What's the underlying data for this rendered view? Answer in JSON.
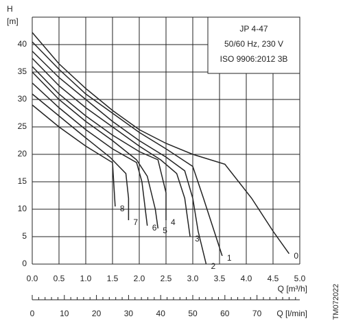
{
  "chart_data": {
    "type": "line",
    "y_label": "H",
    "y_unit": "[m]",
    "x_label": "Q [m³/h]",
    "x2_label": "Q [l/min]",
    "info": [
      "JP 4-47",
      "50/60 Hz, 230 V",
      "ISO 9906:2012 3B"
    ],
    "code": "TM072022",
    "xlim": [
      0,
      5
    ],
    "ylim": [
      0,
      45
    ],
    "xticks": [
      {
        "value": 0,
        "label": "0.0"
      },
      0.5,
      {
        "value": 1,
        "label": "1.0"
      },
      1.5,
      {
        "value": 2,
        "label": "2.0"
      },
      2.5,
      {
        "value": 3,
        "label": "3.0"
      },
      3.5,
      {
        "value": 4,
        "label": "4.0"
      },
      4.5,
      {
        "value": 5,
        "label": "5.0"
      }
    ],
    "yticks": [
      0,
      5,
      10,
      15,
      20,
      25,
      30,
      35,
      40
    ],
    "y_gridtop": 45,
    "x2lim": [
      0,
      83.33
    ],
    "x2ticks": [
      0,
      10,
      20,
      30,
      40,
      50,
      60,
      70
    ],
    "x2minorticks": [
      2,
      4,
      6,
      8,
      12,
      14,
      16,
      18,
      22,
      24,
      26,
      28,
      32,
      34,
      36,
      38,
      42,
      44,
      46,
      48,
      52,
      54,
      56,
      58,
      62,
      64,
      66,
      68,
      72,
      74,
      76,
      78,
      80,
      82
    ],
    "grid": true,
    "color": "#222222",
    "series": [
      {
        "name": "0",
        "x": [
          0,
          0.5,
          1,
          1.5,
          2,
          2.5,
          3,
          3.6,
          4.1,
          4.5,
          4.8
        ],
        "values": [
          42.2,
          36.5,
          32,
          28,
          24.5,
          22,
          20,
          18.2,
          12,
          6,
          1.9
        ]
      },
      {
        "name": "1",
        "x": [
          0,
          0.5,
          1,
          1.5,
          2,
          2.5,
          3,
          3.2,
          3.4,
          3.55
        ],
        "values": [
          40.5,
          35.5,
          31,
          27.5,
          24,
          21,
          17.8,
          12,
          6,
          1.5
        ]
      },
      {
        "name": "2",
        "x": [
          0,
          0.5,
          1,
          1.5,
          2,
          2.5,
          2.85,
          3,
          3.1,
          3.25
        ],
        "values": [
          38.8,
          34,
          30,
          26,
          22.5,
          19.5,
          17,
          12,
          6,
          0
        ]
      },
      {
        "name": "3",
        "x": [
          0,
          0.5,
          1,
          1.5,
          2,
          2.4,
          2.7,
          2.85,
          2.95
        ],
        "values": [
          37.5,
          32.5,
          28.5,
          25,
          21.5,
          19,
          16.5,
          12,
          5
        ]
      },
      {
        "name": "4",
        "x": [
          0,
          0.5,
          1,
          1.5,
          2,
          2.35,
          2.5,
          2.5
        ],
        "values": [
          36,
          31,
          27,
          23.5,
          20.5,
          19,
          13,
          8
        ]
      },
      {
        "name": "5",
        "x": [
          0,
          0.5,
          1,
          1.5,
          1.95,
          2.15,
          2.3,
          2.35
        ],
        "values": [
          35,
          30,
          26,
          22.5,
          19,
          16,
          10,
          6.5
        ]
      },
      {
        "name": "6",
        "x": [
          0,
          0.5,
          1,
          1.5,
          1.95,
          2.05,
          2.1,
          2.15
        ],
        "values": [
          33,
          28.5,
          24.5,
          21,
          18.5,
          15,
          11,
          7
        ]
      },
      {
        "name": "7",
        "x": [
          0,
          0.5,
          1,
          1.45,
          1.75,
          1.8,
          1.8
        ],
        "values": [
          31,
          27,
          23,
          19.5,
          16.5,
          12,
          8
        ]
      },
      {
        "name": "8",
        "x": [
          0,
          0.5,
          1,
          1.5,
          1.55
        ],
        "values": [
          29,
          25,
          21.5,
          18.5,
          10.5
        ]
      }
    ]
  }
}
